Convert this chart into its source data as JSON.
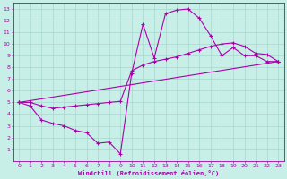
{
  "xlabel": "Windchill (Refroidissement éolien,°C)",
  "bg_color": "#c8eee8",
  "grid_color": "#a8d8cc",
  "line_color": "#aa00aa",
  "xlim": [
    -0.5,
    23.5
  ],
  "ylim": [
    0,
    13.5
  ],
  "xticks": [
    0,
    1,
    2,
    3,
    4,
    5,
    6,
    7,
    8,
    9,
    10,
    11,
    12,
    13,
    14,
    15,
    16,
    17,
    18,
    19,
    20,
    21,
    22,
    23
  ],
  "yticks": [
    1,
    2,
    3,
    4,
    5,
    6,
    7,
    8,
    9,
    10,
    11,
    12,
    13
  ],
  "curve1_x": [
    0,
    1,
    2,
    3,
    4,
    5,
    6,
    7,
    8,
    9,
    10,
    11,
    12,
    13,
    14,
    15,
    16,
    17,
    18,
    19,
    20,
    21,
    22,
    23
  ],
  "curve1_y": [
    5.0,
    4.7,
    3.5,
    3.2,
    3.0,
    2.6,
    2.4,
    1.5,
    1.6,
    0.6,
    7.5,
    11.7,
    8.8,
    12.6,
    12.9,
    13.0,
    12.2,
    10.7,
    9.0,
    9.7,
    9.0,
    9.0,
    8.5,
    8.5
  ],
  "curve2_x": [
    0,
    1,
    2,
    3,
    4,
    5,
    6,
    7,
    8,
    9,
    10,
    11,
    12,
    13,
    14,
    15,
    16,
    17,
    18,
    19,
    20,
    21,
    22,
    23
  ],
  "curve2_y": [
    5.0,
    5.0,
    4.7,
    4.5,
    4.6,
    4.7,
    4.8,
    4.9,
    5.0,
    5.1,
    7.7,
    8.2,
    8.5,
    8.7,
    8.9,
    9.2,
    9.5,
    9.8,
    10.0,
    10.1,
    9.8,
    9.2,
    9.1,
    8.5
  ],
  "curve3_x": [
    0,
    23
  ],
  "curve3_y": [
    5.0,
    8.5
  ]
}
